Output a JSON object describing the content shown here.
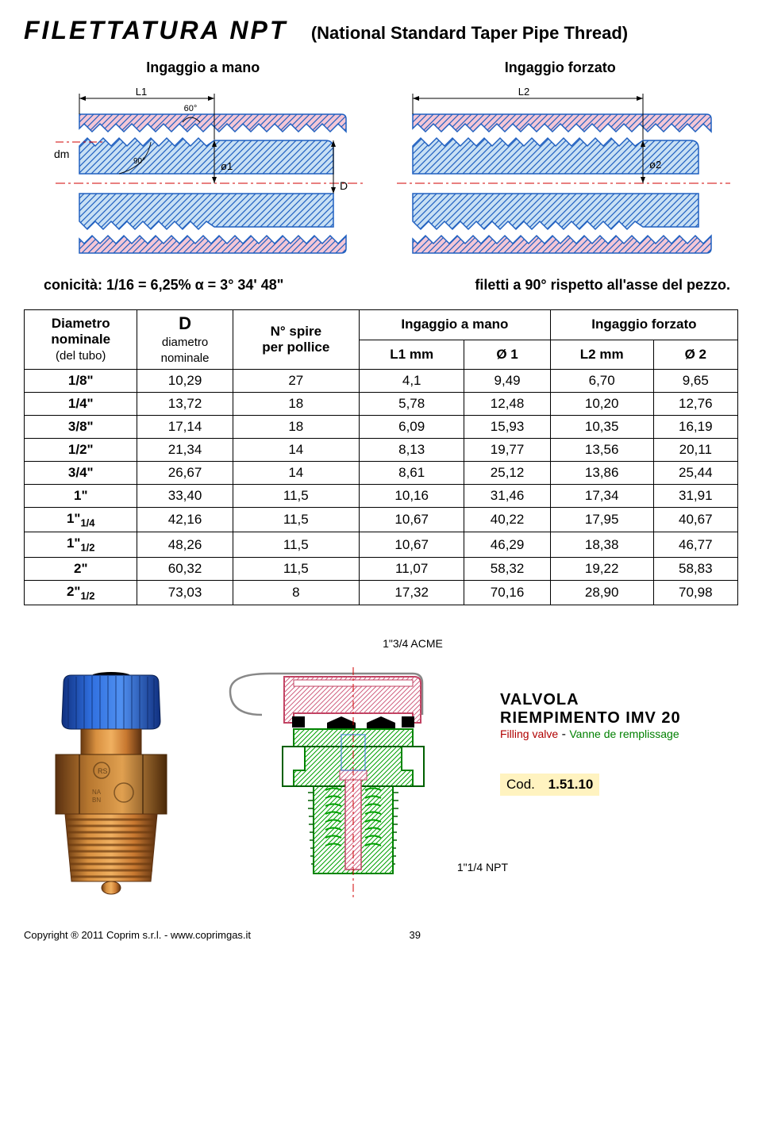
{
  "header": {
    "title": "FILETTATURA  NPT",
    "subtitle": "(National Standard Taper Pipe Thread)"
  },
  "diagrams": {
    "left_label": "Ingaggio a mano",
    "right_label": "Ingaggio  forzato",
    "left": {
      "L1": "L1",
      "angle60": "60°",
      "angle90": "90°",
      "dm": "dm",
      "o1": "ø1",
      "D": "D"
    },
    "right": {
      "L2": "L2",
      "o2": "ø2"
    },
    "colors": {
      "outline": "#2060c0",
      "hatch": "#2060c0",
      "fill_pink": "#f4c6d6",
      "fill_blue": "#c8e0f4",
      "dash_red": "#d00000",
      "text": "#000000"
    }
  },
  "spec_line": {
    "left": "conicità:  1/16  =  6,25%    α =  3° 34' 48\"",
    "right": "filetti a 90° rispetto all'asse del pezzo."
  },
  "table": {
    "headers": {
      "c1a": "Diametro",
      "c1b": "nominale",
      "c1c": "(del tubo)",
      "c2a": "D",
      "c2b": "diametro",
      "c2c": "nominale",
      "c3a": "N° spire",
      "c3b": "per pollice",
      "c45": "Ingaggio a mano",
      "c4": "L1 mm",
      "c5": "Ø 1",
      "c67": "Ingaggio forzato",
      "c6": "L2 mm",
      "c7": "Ø 2"
    },
    "rows": [
      {
        "size": "1/8\"",
        "d": "10,29",
        "spire": "27",
        "l1": "4,1",
        "o1": "9,49",
        "l2": "6,70",
        "o2": "9,65"
      },
      {
        "size": "1/4\"",
        "d": "13,72",
        "spire": "18",
        "l1": "5,78",
        "o1": "12,48",
        "l2": "10,20",
        "o2": "12,76"
      },
      {
        "size": "3/8\"",
        "d": "17,14",
        "spire": "18",
        "l1": "6,09",
        "o1": "15,93",
        "l2": "10,35",
        "o2": "16,19"
      },
      {
        "size": "1/2\"",
        "d": "21,34",
        "spire": "14",
        "l1": "8,13",
        "o1": "19,77",
        "l2": "13,56",
        "o2": "20,11"
      },
      {
        "size": "3/4\"",
        "d": "26,67",
        "spire": "14",
        "l1": "8,61",
        "o1": "25,12",
        "l2": "13,86",
        "o2": "25,44"
      },
      {
        "size": "1\"",
        "d": "33,40",
        "spire": "11,5",
        "l1": "10,16",
        "o1": "31,46",
        "l2": "17,34",
        "o2": "31,91"
      },
      {
        "size_pre": "1\"",
        "size_frac": "1/4",
        "d": "42,16",
        "spire": "11,5",
        "l1": "10,67",
        "o1": "40,22",
        "l2": "17,95",
        "o2": "40,67"
      },
      {
        "size_pre": "1\"",
        "size_frac": "1/2",
        "d": "48,26",
        "spire": "11,5",
        "l1": "10,67",
        "o1": "46,29",
        "l2": "18,38",
        "o2": "46,77"
      },
      {
        "size": "2\"",
        "d": "60,32",
        "spire": "11,5",
        "l1": "11,07",
        "o1": "58,32",
        "l2": "19,22",
        "o2": "58,83"
      },
      {
        "size_pre": "2\"",
        "size_frac": "1/2",
        "d": "73,03",
        "spire": "8",
        "l1": "17,32",
        "o1": "70,16",
        "l2": "28,90",
        "o2": "70,98"
      }
    ]
  },
  "product": {
    "acme": "1\"3/4 ACME",
    "npt": "1\"1/4 NPT",
    "name1": "VALVOLA",
    "name2": "RIEMPIMENTO IMV 20",
    "fill_en": "Filling valve",
    "fill_dash": " - ",
    "fill_fr": "Vanne de remplissage",
    "cod_label": "Cod.",
    "cod_value": "1.51.10",
    "colors": {
      "cap_blue": "#2060c8",
      "brass": "#c88030",
      "brass_dark": "#8a5018",
      "green": "#00a000",
      "pink": "#f090a0",
      "black": "#000000",
      "red": "#d00000"
    }
  },
  "footer": {
    "copyright": "Copyright ® 2011 Coprim s.r.l. - www.coprimgas.it",
    "page": "39"
  }
}
